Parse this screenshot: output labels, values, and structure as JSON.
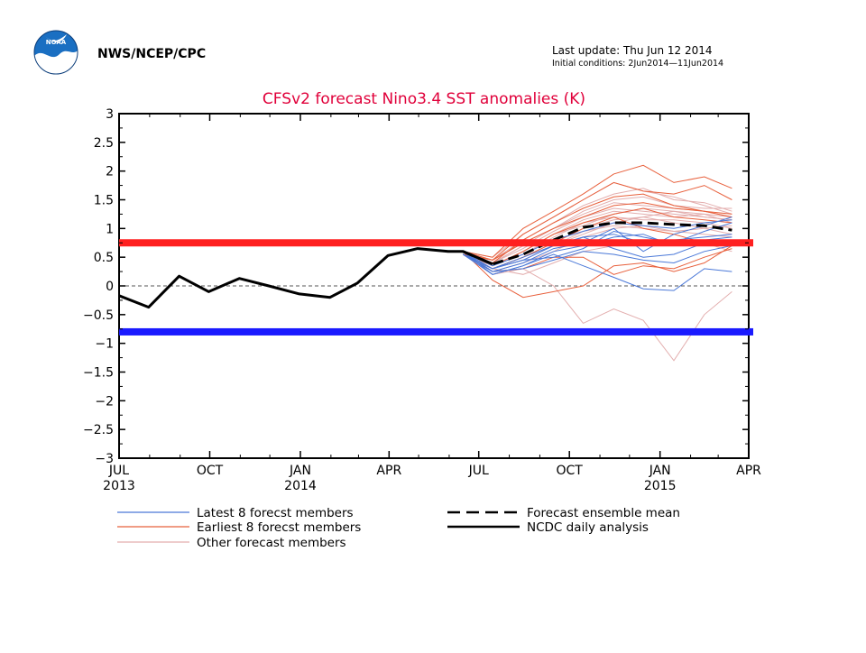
{
  "header": {
    "agency": "NWS/NCEP/CPC",
    "last_update": "Last update: Thu Jun 12 2014",
    "initial_conditions": "Initial conditions: 2Jun2014—11Jun2014",
    "logo_text": "NOAA"
  },
  "chart_data": {
    "type": "line",
    "title": "CFSv2 forecast Nino3.4 SST anomalies (K)",
    "xlabel": "",
    "ylabel": "",
    "xlim": [
      "2013-07-01",
      "2015-04-01"
    ],
    "ylim": [
      -3,
      3
    ],
    "yticks": [
      3,
      2.5,
      2,
      1.5,
      1,
      0.5,
      0,
      -0.5,
      -1,
      -1.5,
      -2,
      -2.5,
      -3
    ],
    "ytick_labels": [
      "3",
      "2.5",
      "2",
      "1.5",
      "1",
      "0.5",
      "0",
      "−0.5",
      "−1",
      "−1.5",
      "−2",
      "−2.5",
      "−3"
    ],
    "xticks": [
      {
        "date": "2013-07-01",
        "label": "JUL",
        "year": "2013"
      },
      {
        "date": "2013-10-01",
        "label": "OCT",
        "year": ""
      },
      {
        "date": "2014-01-01",
        "label": "JAN",
        "year": "2014"
      },
      {
        "date": "2014-04-01",
        "label": "APR",
        "year": ""
      },
      {
        "date": "2014-07-01",
        "label": "JUL",
        "year": ""
      },
      {
        "date": "2014-10-01",
        "label": "OCT",
        "year": ""
      },
      {
        "date": "2015-01-01",
        "label": "JAN",
        "year": "2015"
      },
      {
        "date": "2015-04-01",
        "label": "APR",
        "year": ""
      }
    ],
    "grid": false,
    "zero_line": true,
    "thresholds": [
      {
        "value": 0.75,
        "color": "#ff2020"
      },
      {
        "value": -0.8,
        "color": "#1a1aff"
      }
    ],
    "colors": {
      "latest": "#4a78d8",
      "earliest": "#e8603c",
      "other": "#e3aeae",
      "mean": "#000000",
      "analysis": "#000000"
    },
    "legend": [
      {
        "label": "Latest 8 forecst members",
        "style": "latest"
      },
      {
        "label": "Earliest 8 forecst members",
        "style": "earliest"
      },
      {
        "label": "Other forecast members",
        "style": "other"
      },
      {
        "label": "Forecast ensemble mean",
        "style": "mean"
      },
      {
        "label": "NCDC daily analysis",
        "style": "analysis"
      }
    ],
    "forecast_x": [
      "2014-06-15",
      "2014-07-15",
      "2014-08-15",
      "2014-09-15",
      "2014-10-15",
      "2014-11-15",
      "2014-12-15",
      "2015-01-15",
      "2015-02-15",
      "2015-03-15"
    ],
    "analysis": {
      "name": "NCDC daily analysis",
      "x": [
        "2013-07-01",
        "2013-07-31",
        "2013-08-31",
        "2013-09-30",
        "2013-10-31",
        "2013-11-30",
        "2013-12-31",
        "2014-01-31",
        "2014-02-28",
        "2014-03-31",
        "2014-04-30",
        "2014-05-31",
        "2014-06-15",
        "2014-07-15"
      ],
      "values": [
        -0.17,
        -0.37,
        0.17,
        -0.1,
        0.13,
        0.0,
        -0.14,
        -0.2,
        0.05,
        0.53,
        0.65,
        0.6,
        0.6,
        0.38
      ]
    },
    "ensemble_mean": {
      "name": "Forecast ensemble mean",
      "values": [
        0.6,
        0.38,
        0.55,
        0.8,
        1.02,
        1.1,
        1.1,
        1.07,
        1.05,
        0.97
      ]
    },
    "other_members": [
      [
        0.55,
        0.45,
        0.8,
        1.1,
        1.4,
        1.6,
        1.7,
        1.5,
        1.45,
        1.3
      ],
      [
        0.6,
        0.5,
        0.9,
        1.2,
        1.5,
        1.8,
        1.65,
        1.55,
        1.4,
        1.25
      ],
      [
        0.6,
        0.35,
        0.6,
        0.9,
        1.15,
        1.3,
        1.25,
        1.2,
        1.25,
        1.1
      ],
      [
        0.55,
        0.3,
        0.5,
        0.75,
        1.0,
        1.15,
        1.2,
        1.3,
        1.2,
        1.15
      ],
      [
        0.6,
        0.4,
        0.7,
        1.0,
        1.25,
        1.45,
        1.4,
        1.35,
        1.3,
        1.2
      ],
      [
        0.6,
        0.25,
        0.4,
        0.6,
        0.85,
        1.0,
        1.05,
        0.95,
        1.0,
        0.9
      ],
      [
        0.55,
        0.2,
        0.3,
        0.0,
        -0.65,
        -0.4,
        -0.6,
        -1.3,
        -0.5,
        -0.1
      ],
      [
        0.6,
        0.35,
        0.55,
        0.85,
        1.1,
        1.2,
        1.15,
        1.15,
        1.1,
        1.0
      ],
      [
        0.6,
        0.45,
        0.75,
        1.0,
        1.3,
        1.5,
        1.55,
        1.4,
        1.35,
        1.35
      ],
      [
        0.55,
        0.3,
        0.45,
        0.7,
        0.95,
        1.05,
        1.0,
        0.95,
        0.9,
        0.85
      ],
      [
        0.6,
        0.3,
        0.2,
        0.4,
        0.6,
        0.7,
        0.8,
        0.7,
        0.75,
        0.6
      ],
      [
        0.6,
        0.4,
        0.65,
        0.95,
        1.2,
        1.35,
        1.3,
        1.25,
        1.2,
        1.15
      ],
      [
        0.55,
        0.35,
        0.6,
        0.9,
        1.05,
        1.25,
        1.35,
        1.3,
        1.25,
        1.2
      ],
      [
        0.6,
        0.4,
        0.7,
        0.7,
        0.9,
        1.1,
        1.2,
        1.1,
        1.0,
        1.05
      ]
    ],
    "earliest_members": [
      [
        0.6,
        0.5,
        1.0,
        1.3,
        1.6,
        1.95,
        2.1,
        1.8,
        1.9,
        1.7
      ],
      [
        0.55,
        0.45,
        0.9,
        1.2,
        1.5,
        1.8,
        1.65,
        1.6,
        1.75,
        1.5
      ],
      [
        0.6,
        0.4,
        0.8,
        1.1,
        1.35,
        1.55,
        1.6,
        1.4,
        1.3,
        1.2
      ],
      [
        0.6,
        0.1,
        -0.2,
        -0.1,
        0.0,
        0.35,
        0.4,
        0.25,
        0.4,
        0.7
      ],
      [
        0.55,
        0.25,
        0.3,
        0.5,
        0.5,
        0.2,
        0.35,
        0.3,
        0.5,
        0.65
      ],
      [
        0.6,
        0.35,
        0.6,
        0.9,
        1.1,
        1.25,
        1.35,
        1.2,
        1.15,
        1.1
      ],
      [
        0.6,
        0.45,
        0.75,
        1.0,
        1.2,
        1.4,
        1.45,
        1.35,
        1.3,
        1.25
      ],
      [
        0.55,
        0.3,
        0.5,
        0.75,
        1.0,
        1.2,
        1.0,
        0.9,
        0.75,
        0.7
      ]
    ],
    "latest_members": [
      [
        0.55,
        0.3,
        0.45,
        0.5,
        0.65,
        0.95,
        0.85,
        0.75,
        0.95,
        1.1
      ],
      [
        0.6,
        0.25,
        0.4,
        0.65,
        0.75,
        1.0,
        0.6,
        0.9,
        1.05,
        1.2
      ],
      [
        0.55,
        0.2,
        0.35,
        0.55,
        0.35,
        0.15,
        -0.05,
        -0.08,
        0.3,
        0.25
      ],
      [
        0.6,
        0.3,
        0.5,
        0.7,
        0.85,
        0.9,
        0.75,
        0.8,
        0.85,
        0.9
      ],
      [
        0.6,
        0.35,
        0.55,
        0.8,
        0.95,
        1.1,
        1.05,
        1.0,
        1.1,
        1.15
      ],
      [
        0.55,
        0.25,
        0.3,
        0.45,
        0.6,
        0.55,
        0.45,
        0.4,
        0.6,
        0.7
      ],
      [
        0.6,
        0.2,
        0.35,
        0.6,
        0.7,
        0.85,
        0.9,
        0.7,
        0.8,
        0.85
      ],
      [
        0.55,
        0.3,
        0.45,
        0.7,
        0.85,
        0.65,
        0.5,
        0.55,
        0.75,
        0.8
      ]
    ]
  }
}
